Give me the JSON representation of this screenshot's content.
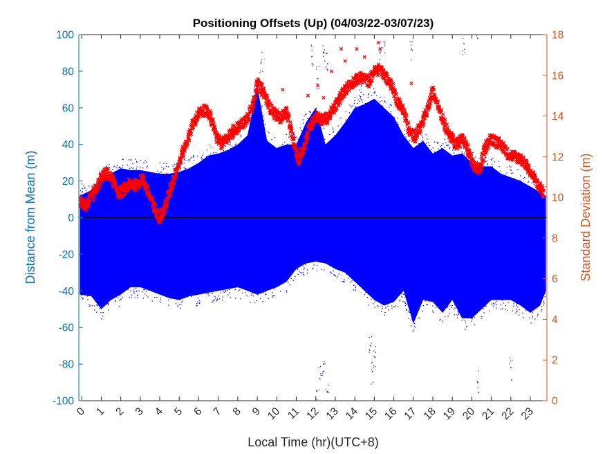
{
  "colors": {
    "left_axis": "#0072BD",
    "right_axis": "#D95319",
    "offsets": "#0000FF",
    "stddev": "#FF0000",
    "zero_line": "#000000",
    "axes": "#262626"
  },
  "chart_data": {
    "type": "scatter",
    "title": "Positioning Offsets (Up) (04/03/22-03/07/23)",
    "xlabel": "Local Time (hr)(UTC+8)",
    "ylabel_left": "Distance from Mean (m)",
    "ylabel_right": "Standard Deviation (m)",
    "xlim": [
      -0.15,
      23.85
    ],
    "ylim_left": [
      -100,
      100
    ],
    "ylim_right": [
      0,
      18
    ],
    "x_ticks": [
      0,
      1,
      2,
      3,
      4,
      5,
      6,
      7,
      8,
      9,
      10,
      11,
      12,
      13,
      14,
      15,
      16,
      17,
      18,
      19,
      20,
      21,
      22,
      23
    ],
    "y_ticks_left": [
      -100,
      -80,
      -60,
      -40,
      -20,
      0,
      20,
      40,
      60,
      80,
      100
    ],
    "y_ticks_right": [
      0,
      2,
      4,
      6,
      8,
      10,
      12,
      14,
      16,
      18
    ],
    "grid": false,
    "series": [
      {
        "marker": "dot",
        "axis": "left",
        "color": "#0000FF",
        "envelope": {
          "x": [
            -0.1,
            0.5,
            1,
            1.5,
            2,
            2.5,
            3,
            3.5,
            4,
            4.5,
            5,
            5.5,
            6,
            6.5,
            7,
            7.5,
            8,
            8.5,
            9,
            9.5,
            10,
            10.5,
            11,
            11.5,
            12,
            12.5,
            13,
            13.5,
            14,
            14.5,
            15,
            15.5,
            16,
            16.5,
            17,
            17.5,
            18,
            18.5,
            19,
            19.5,
            20,
            20.5,
            21,
            21.5,
            22,
            22.5,
            23,
            23.5,
            23.8
          ],
          "upper": [
            12,
            15,
            22,
            24,
            27,
            26,
            26,
            25,
            24,
            24,
            25,
            27,
            30,
            34,
            35,
            37,
            40,
            45,
            72,
            42,
            38,
            40,
            40,
            52,
            60,
            40,
            45,
            52,
            60,
            62,
            65,
            60,
            55,
            45,
            38,
            42,
            35,
            38,
            34,
            35,
            30,
            28,
            28,
            24,
            22,
            20,
            17,
            14,
            12
          ],
          "lower": [
            -42,
            -43,
            -50,
            -45,
            -42,
            -38,
            -38,
            -40,
            -42,
            -44,
            -45,
            -43,
            -42,
            -41,
            -40,
            -39,
            -38,
            -40,
            -42,
            -40,
            -38,
            -35,
            -28,
            -25,
            -24,
            -25,
            -28,
            -30,
            -35,
            -40,
            -45,
            -48,
            -46,
            -40,
            -58,
            -45,
            -46,
            -52,
            -45,
            -55,
            -55,
            -50,
            -45,
            -45,
            -45,
            -48,
            -52,
            -48,
            -40
          ]
        },
        "outliers": [
          [
            12.0,
            -98
          ],
          [
            12.2,
            -88
          ],
          [
            12.4,
            -80
          ],
          [
            12.6,
            -95
          ],
          [
            14.9,
            -84
          ],
          [
            14.8,
            -70
          ],
          [
            15.0,
            -76
          ],
          [
            20.3,
            -90
          ],
          [
            22.0,
            -82
          ],
          [
            11.8,
            88
          ],
          [
            12.4,
            90
          ],
          [
            12.6,
            84
          ],
          [
            16.9,
            92
          ],
          [
            19.6,
            95
          ],
          [
            20.3,
            98
          ],
          [
            9.2,
            85
          ],
          [
            14.3,
            66
          ],
          [
            15.3,
            90
          ],
          [
            15.5,
            96
          ],
          [
            12.1,
            76
          ]
        ]
      },
      {
        "marker": "x",
        "axis": "right",
        "color": "#FF0000",
        "x": [
          -0.1,
          0.2,
          0.5,
          0.8,
          1.0,
          1.3,
          1.6,
          1.9,
          2.2,
          2.5,
          2.8,
          3.1,
          3.4,
          3.7,
          3.95,
          4.2,
          4.5,
          4.8,
          5.1,
          5.4,
          5.7,
          6.0,
          6.3,
          6.6,
          6.9,
          7.2,
          7.5,
          7.8,
          8.1,
          8.4,
          8.7,
          9.0,
          9.3,
          9.6,
          9.9,
          10.2,
          10.5,
          10.8,
          11.1,
          11.4,
          11.7,
          12.0,
          12.3,
          12.6,
          12.9,
          13.2,
          13.5,
          13.8,
          14.1,
          14.4,
          14.7,
          15.0,
          15.3,
          15.6,
          15.9,
          16.2,
          16.5,
          16.8,
          17.1,
          17.4,
          17.7,
          18.0,
          18.3,
          18.6,
          18.9,
          19.2,
          19.5,
          19.8,
          20.1,
          20.4,
          20.7,
          21.0,
          21.3,
          21.6,
          21.9,
          22.2,
          22.5,
          22.8,
          23.1,
          23.4,
          23.7
        ],
        "y": [
          9.8,
          9.6,
          10.0,
          10.5,
          11.0,
          11.2,
          10.8,
          10.2,
          10.4,
          10.7,
          10.6,
          10.9,
          10.3,
          9.5,
          9.0,
          9.3,
          10.3,
          11.2,
          12.0,
          12.8,
          13.6,
          14.1,
          14.3,
          14.0,
          13.0,
          12.6,
          13.0,
          13.3,
          13.5,
          13.8,
          14.3,
          15.6,
          15.2,
          14.5,
          14.1,
          13.9,
          14.2,
          13.0,
          11.8,
          12.5,
          13.5,
          14.0,
          13.8,
          13.9,
          14.3,
          14.8,
          15.3,
          15.6,
          15.8,
          15.9,
          15.7,
          16.2,
          16.3,
          15.9,
          15.5,
          14.7,
          14.3,
          13.2,
          13.0,
          13.5,
          14.2,
          15.2,
          14.5,
          13.6,
          13.0,
          12.6,
          12.9,
          12.3,
          11.5,
          11.3,
          12.5,
          12.9,
          12.7,
          12.5,
          12.1,
          12.0,
          11.9,
          11.6,
          11.1,
          10.6,
          10.2
        ],
        "outliers": [
          [
            10.3,
            15.3
          ],
          [
            11.6,
            15.0
          ],
          [
            12.1,
            15.5
          ],
          [
            12.4,
            14.9
          ],
          [
            13.3,
            17.3
          ],
          [
            13.5,
            16.7
          ],
          [
            14.1,
            17.3
          ],
          [
            14.5,
            16.9
          ],
          [
            15.2,
            17.6
          ],
          [
            15.3,
            17.3
          ],
          [
            16.9,
            15.6
          ],
          [
            12.8,
            16.2
          ]
        ]
      }
    ],
    "zero_line": true
  }
}
